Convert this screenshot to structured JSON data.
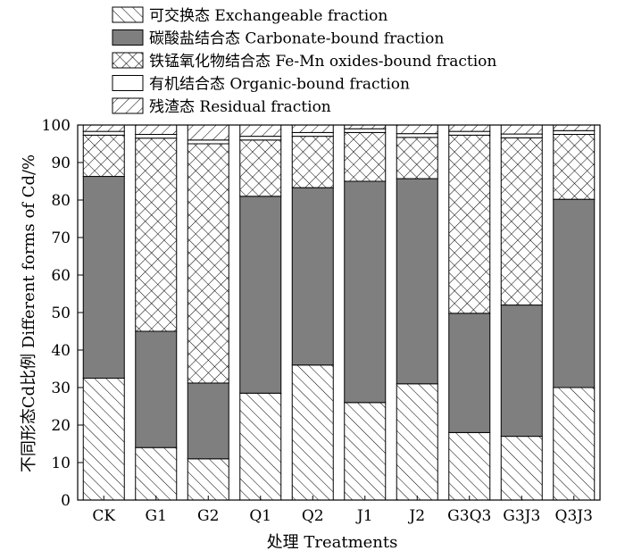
{
  "chart_data": {
    "type": "bar",
    "stacked": true,
    "xlabel": "处理 Treatments",
    "ylabel": "不同形态Cd比例 Different forms of Cd/%",
    "ylim": [
      0,
      100
    ],
    "yticks": [
      "0",
      "10",
      "20",
      "30",
      "40",
      "50",
      "60",
      "70",
      "80",
      "90",
      "100"
    ],
    "categories": [
      "CK",
      "G1",
      "G2",
      "Q1",
      "Q2",
      "J1",
      "J2",
      "G3Q3",
      "G3J3",
      "Q3J3"
    ],
    "legend_placement": "top",
    "series": [
      {
        "name": "可交换态 Exchangeable fraction",
        "pattern": "diagonal-hatch",
        "values": [
          32.5,
          14.0,
          11.0,
          28.5,
          36.0,
          26.0,
          31.0,
          18.0,
          17.0,
          30.0
        ]
      },
      {
        "name": "碳酸盐结合态 Carbonate-bound fraction",
        "pattern": "solid-gray",
        "color": "#7f7f7f",
        "values": [
          53.8,
          31.0,
          20.2,
          52.5,
          47.3,
          59.0,
          54.7,
          31.8,
          35.0,
          50.2
        ]
      },
      {
        "name": "铁锰氧化物结合态 Fe-Mn oxides-bound fraction",
        "pattern": "cross-hatch",
        "values": [
          11.0,
          51.5,
          63.8,
          15.0,
          13.7,
          13.0,
          11.0,
          47.5,
          44.6,
          17.3
        ]
      },
      {
        "name": "有机结合态 Organic-bound fraction",
        "pattern": "white",
        "values": [
          1.0,
          1.0,
          1.0,
          1.0,
          1.0,
          1.0,
          1.0,
          1.0,
          1.0,
          1.0
        ]
      },
      {
        "name": "残渣态 Residual fraction",
        "pattern": "back-diagonal-hatch",
        "values": [
          1.7,
          2.5,
          4.0,
          3.0,
          2.0,
          1.0,
          2.3,
          1.7,
          2.4,
          1.5
        ]
      }
    ]
  }
}
